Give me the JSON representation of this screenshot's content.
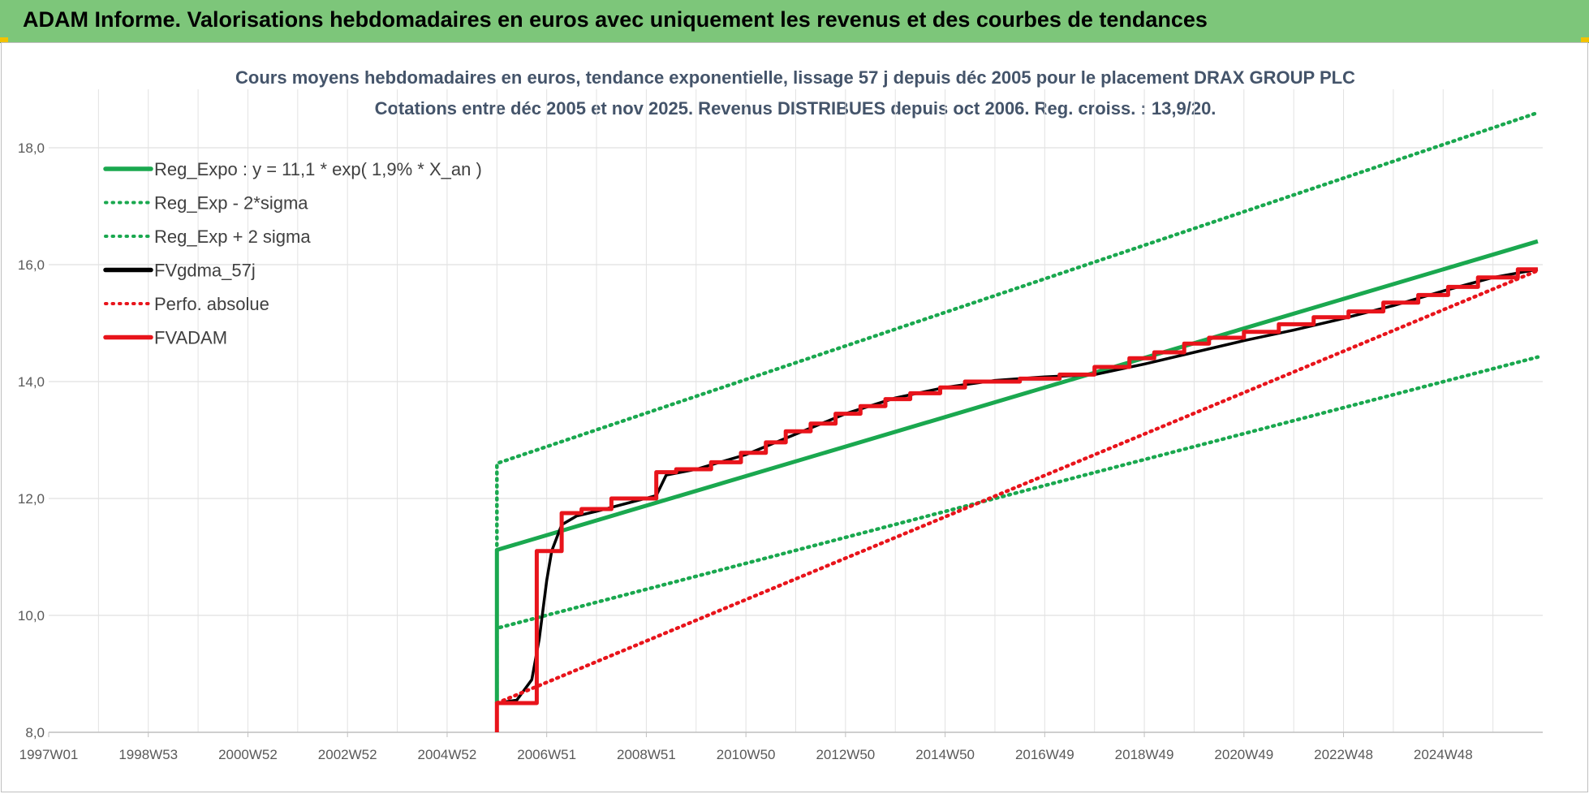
{
  "header": {
    "title": "ADAM Informe. Valorisations hebdomadaires en euros avec uniquement les revenus et des courbes de tendances"
  },
  "chart_data": {
    "type": "line",
    "title": "Cours moyens hebdomadaires en euros, tendance exponentielle, lissage 57 j depuis déc 2005 pour le placement DRAX GROUP PLC",
    "subtitle": "Cotations entre déc 2005 et nov 2025. Revenus DISTRIBUES depuis oct 2006. Reg. croiss. : 13,9/20.",
    "xlabel": "",
    "ylabel": "",
    "x_tick_labels": [
      "1997W01",
      "1998W53",
      "2000W52",
      "2002W52",
      "2004W52",
      "2006W51",
      "2008W51",
      "2010W50",
      "2012W50",
      "2014W50",
      "2016W49",
      "2018W49",
      "2020W49",
      "2022W48",
      "2024W48"
    ],
    "xlim": [
      1997.0,
      2027.0
    ],
    "ylim": [
      8.0,
      19.0
    ],
    "y_ticks": [
      8,
      10,
      12,
      14,
      16,
      18
    ],
    "y_tick_labels": [
      "8,0",
      "10,0",
      "12,0",
      "14,0",
      "16,0",
      "18,0"
    ],
    "grid": true,
    "legend_position": "top-left",
    "series": [
      {
        "name": "Reg_Expo : y = 11,1 * exp( 1,9% *  X_an )",
        "color": "#1aa84f",
        "style": "solid",
        "x": [
          2006.0,
          2006.0,
          2026.9
        ],
        "y": [
          8.5,
          11.12,
          16.4
        ]
      },
      {
        "name": "Reg_Exp - 2*sigma",
        "color": "#1aa84f",
        "style": "dotted",
        "x": [
          2006.0,
          2006.0,
          2026.9
        ],
        "y": [
          8.5,
          9.78,
          14.42
        ]
      },
      {
        "name": "Reg_Exp + 2 sigma",
        "color": "#1aa84f",
        "style": "dotted",
        "x": [
          2006.0,
          2006.0,
          2026.9
        ],
        "y": [
          11.2,
          12.6,
          18.6
        ]
      },
      {
        "name": "FVgdma_57j",
        "color": "#000000",
        "style": "solid",
        "x": [
          2006.0,
          2006.4,
          2006.7,
          2006.85,
          2007.0,
          2007.1,
          2007.3,
          2007.6,
          2008.0,
          2009.2,
          2009.4,
          2010.0,
          2011.0,
          2012.0,
          2013.0,
          2014.0,
          2015.0,
          2016.0,
          2017.0,
          2018.0,
          2019.0,
          2020.0,
          2021.0,
          2022.0,
          2023.0,
          2024.0,
          2025.0,
          2026.0,
          2026.9
        ],
        "y": [
          8.5,
          8.55,
          8.9,
          9.6,
          10.6,
          11.1,
          11.55,
          11.7,
          11.78,
          12.05,
          12.4,
          12.5,
          12.75,
          13.1,
          13.45,
          13.72,
          13.9,
          14.02,
          14.08,
          14.12,
          14.3,
          14.5,
          14.7,
          14.88,
          15.08,
          15.3,
          15.55,
          15.78,
          15.92
        ]
      },
      {
        "name": "Perfo. absolue",
        "color": "#e8141b",
        "style": "dotted",
        "x": [
          2006.0,
          2026.9
        ],
        "y": [
          8.5,
          15.9
        ]
      },
      {
        "name": "FVADAM",
        "color": "#e8141b",
        "style": "solid",
        "x": [
          2006.0,
          2006.0,
          2006.0,
          2006.8,
          2006.8,
          2007.3,
          2007.3,
          2007.7,
          2007.7,
          2008.3,
          2008.3,
          2009.2,
          2009.2,
          2009.6,
          2009.6,
          2010.3,
          2010.3,
          2010.9,
          2010.9,
          2011.4,
          2011.4,
          2011.8,
          2011.8,
          2012.3,
          2012.3,
          2012.8,
          2012.8,
          2013.3,
          2013.3,
          2013.8,
          2013.8,
          2014.3,
          2014.3,
          2014.9,
          2014.9,
          2015.4,
          2015.4,
          2016.5,
          2016.5,
          2017.3,
          2017.3,
          2018.0,
          2018.0,
          2018.7,
          2018.7,
          2019.2,
          2019.2,
          2019.8,
          2019.8,
          2020.3,
          2020.3,
          2021.0,
          2021.0,
          2021.7,
          2021.7,
          2022.4,
          2022.4,
          2023.1,
          2023.1,
          2023.8,
          2023.8,
          2024.5,
          2024.5,
          2025.1,
          2025.1,
          2025.7,
          2025.7,
          2026.5,
          2026.5,
          2026.9
        ],
        "y": [
          8.0,
          8.0,
          8.5,
          8.5,
          11.1,
          11.1,
          11.75,
          11.75,
          11.82,
          11.82,
          12.0,
          12.0,
          12.45,
          12.45,
          12.5,
          12.5,
          12.62,
          12.62,
          12.78,
          12.78,
          12.96,
          12.96,
          13.15,
          13.15,
          13.28,
          13.28,
          13.45,
          13.45,
          13.58,
          13.58,
          13.7,
          13.7,
          13.8,
          13.8,
          13.9,
          13.9,
          14.0,
          14.0,
          14.05,
          14.05,
          14.12,
          14.12,
          14.25,
          14.25,
          14.4,
          14.4,
          14.5,
          14.5,
          14.65,
          14.65,
          14.75,
          14.75,
          14.85,
          14.85,
          14.98,
          14.98,
          15.1,
          15.1,
          15.2,
          15.2,
          15.35,
          15.35,
          15.48,
          15.48,
          15.62,
          15.62,
          15.78,
          15.78,
          15.92,
          15.92
        ]
      }
    ]
  }
}
